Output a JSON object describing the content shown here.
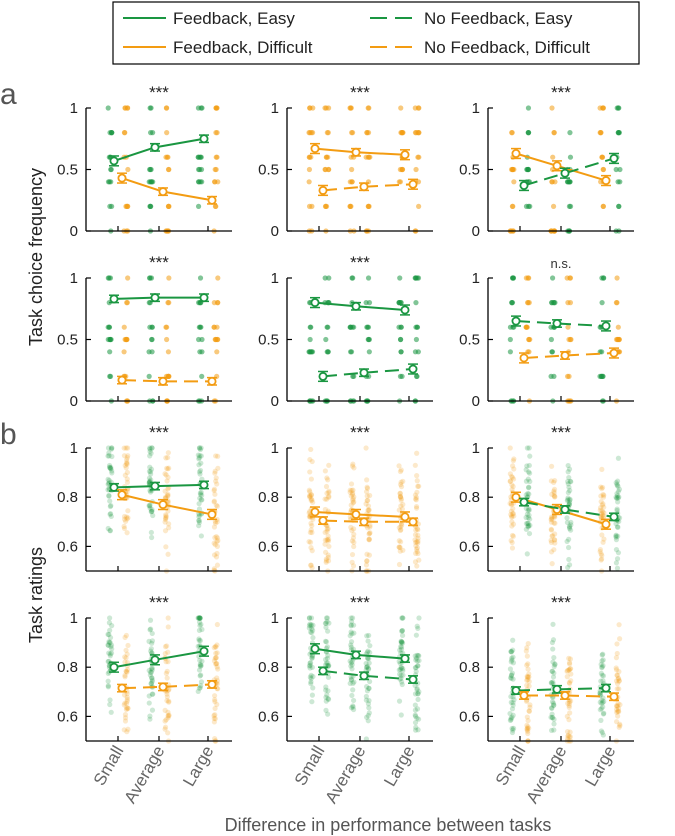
{
  "colors": {
    "easy": "#1a9641",
    "difficult": "#f39c12",
    "axis": "#000000"
  },
  "legend": {
    "items": [
      {
        "label": "Feedback, Easy",
        "color": "easy",
        "dashed": false
      },
      {
        "label": "No Feedback, Easy",
        "color": "easy",
        "dashed": true
      },
      {
        "label": "Feedback, Difficult",
        "color": "difficult",
        "dashed": false
      },
      {
        "label": "No Feedback, Difficult",
        "color": "difficult",
        "dashed": true
      }
    ]
  },
  "labels": {
    "panel_a": "a",
    "panel_b": "b",
    "ylabel_a": "Task choice frequency",
    "ylabel_b": "Task ratings",
    "xlabel": "Difference in performance between tasks",
    "categories": [
      "Small",
      "Average",
      "Large"
    ]
  },
  "chart_data": [
    {
      "id": "a-r1-c1",
      "type": "line",
      "panel": "a",
      "ylim": [
        0,
        1
      ],
      "yticks": [
        "0",
        "0.5",
        "1"
      ],
      "significance": "***",
      "series": [
        {
          "name": "Feedback, Easy",
          "color": "easy",
          "dashed": false,
          "values": [
            0.57,
            0.68,
            0.75
          ],
          "err": [
            0.04,
            0.03,
            0.03
          ]
        },
        {
          "name": "Feedback, Difficult",
          "color": "difficult",
          "dashed": false,
          "values": [
            0.43,
            0.32,
            0.25
          ],
          "err": [
            0.04,
            0.03,
            0.03
          ]
        }
      ]
    },
    {
      "id": "a-r1-c2",
      "type": "line",
      "panel": "a",
      "ylim": [
        0,
        1
      ],
      "yticks": [
        "0",
        "0.5",
        "1"
      ],
      "significance": "***",
      "series": [
        {
          "name": "Feedback, Difficult",
          "color": "difficult",
          "dashed": false,
          "values": [
            0.67,
            0.64,
            0.62
          ],
          "err": [
            0.04,
            0.03,
            0.04
          ]
        },
        {
          "name": "No Feedback, Difficult",
          "color": "difficult",
          "dashed": true,
          "values": [
            0.33,
            0.36,
            0.38
          ],
          "err": [
            0.04,
            0.03,
            0.04
          ]
        }
      ]
    },
    {
      "id": "a-r1-c3",
      "type": "line",
      "panel": "a",
      "ylim": [
        0,
        1
      ],
      "yticks": [
        "0",
        "0.5",
        "1"
      ],
      "significance": "***",
      "series": [
        {
          "name": "Feedback, Difficult",
          "color": "difficult",
          "dashed": false,
          "values": [
            0.63,
            0.53,
            0.41
          ],
          "err": [
            0.04,
            0.04,
            0.04
          ]
        },
        {
          "name": "No Feedback, Easy",
          "color": "easy",
          "dashed": true,
          "values": [
            0.37,
            0.47,
            0.59
          ],
          "err": [
            0.04,
            0.04,
            0.04
          ]
        }
      ]
    },
    {
      "id": "a-r2-c1",
      "type": "line",
      "panel": "a",
      "ylim": [
        0,
        1
      ],
      "yticks": [
        "0",
        "0.5",
        "1"
      ],
      "significance": "***",
      "series": [
        {
          "name": "Feedback, Easy",
          "color": "easy",
          "dashed": false,
          "values": [
            0.83,
            0.84,
            0.84
          ],
          "err": [
            0.03,
            0.03,
            0.03
          ]
        },
        {
          "name": "No Feedback, Difficult",
          "color": "difficult",
          "dashed": true,
          "values": [
            0.17,
            0.16,
            0.16
          ],
          "err": [
            0.03,
            0.03,
            0.03
          ]
        }
      ]
    },
    {
      "id": "a-r2-c2",
      "type": "line",
      "panel": "a",
      "ylim": [
        0,
        1
      ],
      "yticks": [
        "0",
        "0.5",
        "1"
      ],
      "significance": "***",
      "series": [
        {
          "name": "Feedback, Easy",
          "color": "easy",
          "dashed": false,
          "values": [
            0.8,
            0.77,
            0.74
          ],
          "err": [
            0.04,
            0.03,
            0.04
          ]
        },
        {
          "name": "No Feedback, Easy",
          "color": "easy",
          "dashed": true,
          "values": [
            0.2,
            0.23,
            0.26
          ],
          "err": [
            0.04,
            0.03,
            0.04
          ]
        }
      ]
    },
    {
      "id": "a-r2-c3",
      "type": "line",
      "panel": "a",
      "ylim": [
        0,
        1
      ],
      "yticks": [
        "0",
        "0.5",
        "1"
      ],
      "significance": "n.s.",
      "series": [
        {
          "name": "No Feedback, Easy",
          "color": "easy",
          "dashed": true,
          "values": [
            0.65,
            0.63,
            0.61
          ],
          "err": [
            0.04,
            0.03,
            0.04
          ]
        },
        {
          "name": "No Feedback, Difficult",
          "color": "difficult",
          "dashed": true,
          "values": [
            0.35,
            0.37,
            0.39
          ],
          "err": [
            0.04,
            0.03,
            0.04
          ]
        }
      ]
    },
    {
      "id": "b-r1-c1",
      "type": "line",
      "panel": "b",
      "ylim": [
        0.5,
        1
      ],
      "yticks": [
        "0.6",
        "0.8",
        "1"
      ],
      "significance": "***",
      "series": [
        {
          "name": "Feedback, Easy",
          "color": "easy",
          "dashed": false,
          "values": [
            0.84,
            0.845,
            0.85
          ],
          "err": [
            0.015,
            0.015,
            0.015
          ]
        },
        {
          "name": "Feedback, Difficult",
          "color": "difficult",
          "dashed": false,
          "values": [
            0.81,
            0.77,
            0.73
          ],
          "err": [
            0.02,
            0.02,
            0.02
          ]
        }
      ]
    },
    {
      "id": "b-r1-c2",
      "type": "line",
      "panel": "b",
      "ylim": [
        0.5,
        1
      ],
      "yticks": [
        "0.6",
        "0.8",
        "1"
      ],
      "significance": "***",
      "series": [
        {
          "name": "Feedback, Difficult",
          "color": "difficult",
          "dashed": false,
          "values": [
            0.74,
            0.73,
            0.72
          ],
          "err": [
            0.02,
            0.02,
            0.02
          ]
        },
        {
          "name": "No Feedback, Difficult",
          "color": "difficult",
          "dashed": true,
          "values": [
            0.705,
            0.7,
            0.7
          ],
          "err": [
            0.015,
            0.015,
            0.015
          ]
        }
      ]
    },
    {
      "id": "b-r1-c3",
      "type": "line",
      "panel": "b",
      "ylim": [
        0.5,
        1
      ],
      "yticks": [
        "0.6",
        "0.8",
        "1"
      ],
      "significance": "***",
      "series": [
        {
          "name": "Feedback, Difficult",
          "color": "difficult",
          "dashed": false,
          "values": [
            0.8,
            0.75,
            0.69
          ],
          "err": [
            0.02,
            0.02,
            0.02
          ]
        },
        {
          "name": "No Feedback, Easy",
          "color": "easy",
          "dashed": true,
          "values": [
            0.78,
            0.75,
            0.72
          ],
          "err": [
            0.015,
            0.015,
            0.015
          ]
        }
      ]
    },
    {
      "id": "b-r2-c1",
      "type": "line",
      "panel": "b",
      "ylim": [
        0.5,
        1
      ],
      "yticks": [
        "0.6",
        "0.8",
        "1"
      ],
      "significance": "***",
      "series": [
        {
          "name": "Feedback, Easy",
          "color": "easy",
          "dashed": false,
          "values": [
            0.8,
            0.83,
            0.865
          ],
          "err": [
            0.02,
            0.02,
            0.02
          ]
        },
        {
          "name": "No Feedback, Difficult",
          "color": "difficult",
          "dashed": true,
          "values": [
            0.715,
            0.72,
            0.73
          ],
          "err": [
            0.015,
            0.015,
            0.015
          ]
        }
      ]
    },
    {
      "id": "b-r2-c2",
      "type": "line",
      "panel": "b",
      "ylim": [
        0.5,
        1
      ],
      "yticks": [
        "0.6",
        "0.8",
        "1"
      ],
      "significance": "***",
      "series": [
        {
          "name": "Feedback, Easy",
          "color": "easy",
          "dashed": false,
          "values": [
            0.875,
            0.85,
            0.835
          ],
          "err": [
            0.02,
            0.015,
            0.015
          ]
        },
        {
          "name": "No Feedback, Easy",
          "color": "easy",
          "dashed": true,
          "values": [
            0.785,
            0.765,
            0.75
          ],
          "err": [
            0.015,
            0.015,
            0.015
          ]
        }
      ]
    },
    {
      "id": "b-r2-c3",
      "type": "line",
      "panel": "b",
      "ylim": [
        0.5,
        1
      ],
      "yticks": [
        "0.6",
        "0.8",
        "1"
      ],
      "significance": "***",
      "series": [
        {
          "name": "No Feedback, Easy",
          "color": "easy",
          "dashed": true,
          "values": [
            0.705,
            0.71,
            0.715
          ],
          "err": [
            0.015,
            0.015,
            0.015
          ]
        },
        {
          "name": "No Feedback, Difficult",
          "color": "difficult",
          "dashed": true,
          "values": [
            0.685,
            0.685,
            0.68
          ],
          "err": [
            0.015,
            0.015,
            0.015
          ]
        }
      ]
    }
  ]
}
